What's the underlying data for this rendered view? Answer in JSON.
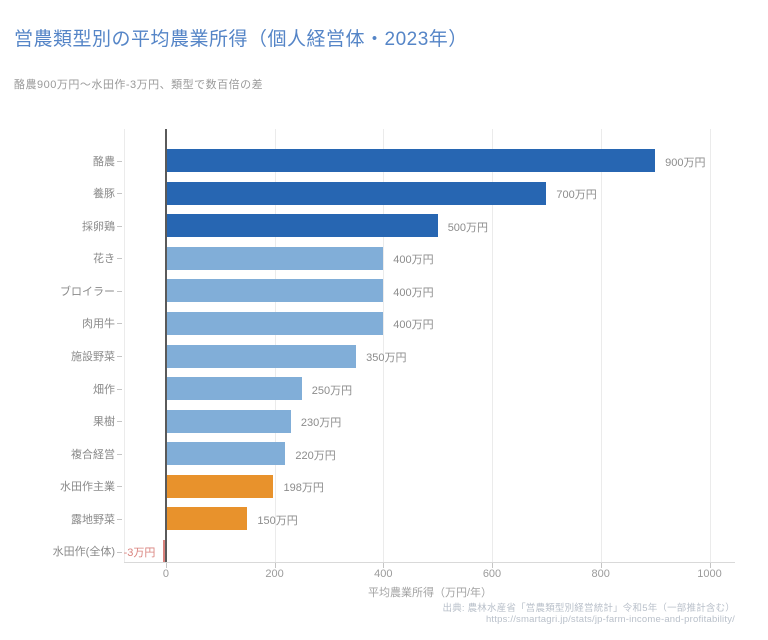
{
  "title": "営農類型別の平均農業所得（個人経営体・2023年）",
  "subtitle": "酪農900万円〜水田作-3万円、類型で数百倍の差",
  "chart_data": {
    "type": "bar",
    "orientation": "horizontal",
    "title": "営農類型別の平均農業所得（個人経営体・2023年）",
    "subtitle": "酪農900万円〜水田作-3万円、類型で数百倍の差",
    "categories": [
      "酪農",
      "養豚",
      "採卵鶏",
      "花き",
      "ブロイラー",
      "肉用牛",
      "施設野菜",
      "畑作",
      "果樹",
      "複合経営",
      "水田作主業",
      "露地野菜",
      "水田作(全体)"
    ],
    "values": [
      900,
      700,
      500,
      400,
      400,
      400,
      350,
      250,
      230,
      220,
      198,
      150,
      -3
    ],
    "value_labels": [
      "900万円",
      "700万円",
      "500万円",
      "400万円",
      "400万円",
      "400万円",
      "350万円",
      "250万円",
      "230万円",
      "220万円",
      "198万円",
      "150万円",
      "-3万円"
    ],
    "bar_colors": [
      "#2766b2",
      "#2766b2",
      "#2766b2",
      "#81aed8",
      "#81aed8",
      "#81aed8",
      "#81aed8",
      "#81aed8",
      "#81aed8",
      "#81aed8",
      "#e8922c",
      "#e8922c",
      "#d9827d"
    ],
    "xlabel": "平均農業所得（万円/年）",
    "ylabel": "",
    "xticks": [
      0,
      200,
      400,
      600,
      800,
      1000
    ],
    "xlim": [
      -77,
      1047
    ],
    "grid": "vertical",
    "legend": "none",
    "value_label_color": "#8c8c8c",
    "negative_label_color": "#d9827d",
    "accent_colors": {
      "high": "#2766b2",
      "mid": "#81aed8",
      "low": "#e8922c",
      "negative": "#d9827d"
    }
  },
  "source": {
    "line1": "出典: 農林水産省「営農類型別経営統計」令和5年（一部推計含む）",
    "line2": "https://smartagri.jp/stats/jp-farm-income-and-profitability/"
  }
}
